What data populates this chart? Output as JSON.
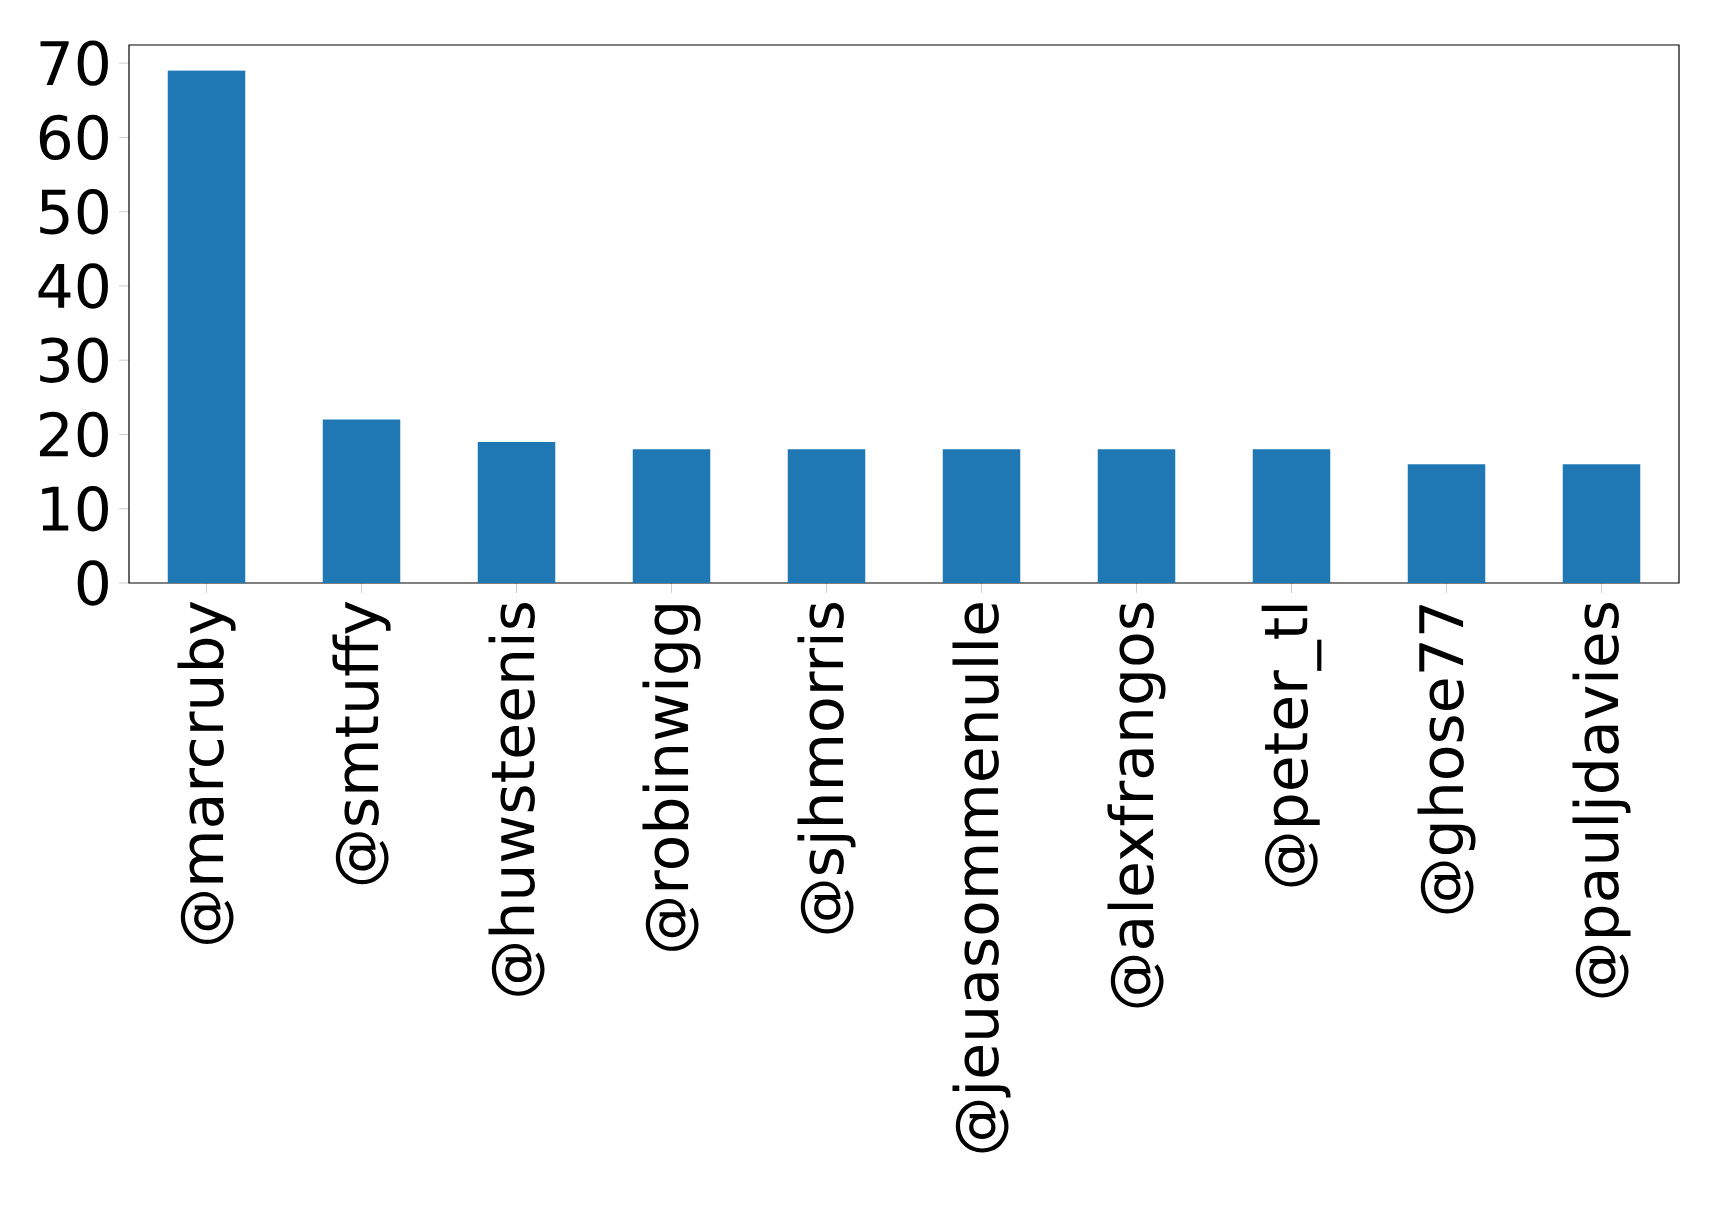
{
  "chart_data": {
    "type": "bar",
    "categories": [
      "@marcruby",
      "@smtuffy",
      "@huwsteenis",
      "@robinwigg",
      "@sjhmorris",
      "@jeuasommenulle",
      "@alexfrangos",
      "@peter_tl",
      "@ghose77",
      "@pauljdavies"
    ],
    "values": [
      69,
      22,
      19,
      18,
      18,
      18,
      18,
      18,
      16,
      16
    ],
    "color": "#1f77b4",
    "ylim": [
      0,
      72.45
    ],
    "yticks": [
      0,
      10,
      20,
      30,
      40,
      50,
      60,
      70
    ]
  }
}
